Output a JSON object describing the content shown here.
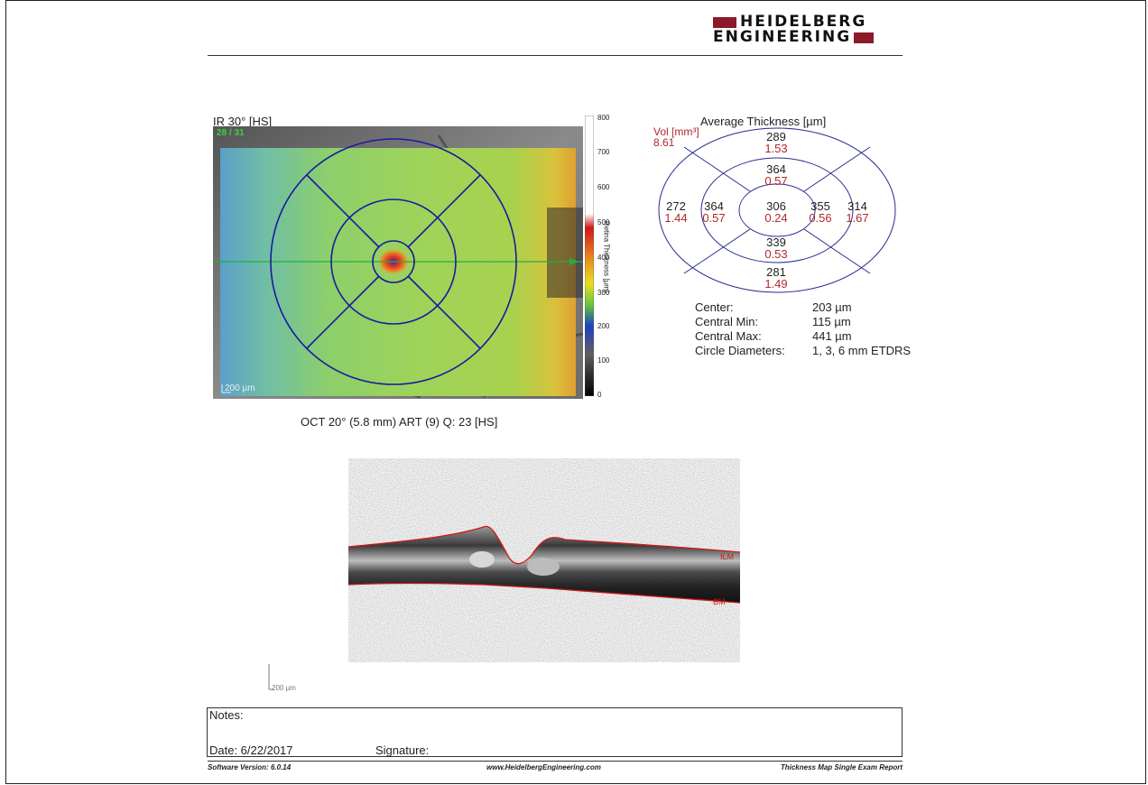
{
  "logo": {
    "line1": "HEIDELBERG",
    "line2": "ENGINEERING"
  },
  "fundus": {
    "title": "IR 30° [HS]",
    "frames": "28 / 31",
    "scale": "200 µm"
  },
  "colorbar": {
    "label": "Retina Thickness [µm]",
    "ticks": [
      "800",
      "700",
      "600",
      "500",
      "400",
      "300",
      "200",
      "100",
      "0"
    ]
  },
  "etdrs": {
    "title": "Average Thickness [µm]",
    "vol_label": "Vol [mm³]",
    "vol_value": "8.61",
    "sectors": {
      "outer_superior": {
        "thickness": "289",
        "volume": "1.53"
      },
      "inner_superior": {
        "thickness": "364",
        "volume": "0.57"
      },
      "outer_temporal": {
        "thickness": "272",
        "volume": "1.44"
      },
      "inner_temporal": {
        "thickness": "364",
        "volume": "0.57"
      },
      "center": {
        "thickness": "306",
        "volume": "0.24"
      },
      "inner_nasal": {
        "thickness": "355",
        "volume": "0.56"
      },
      "outer_nasal": {
        "thickness": "314",
        "volume": "1.67"
      },
      "inner_inferior": {
        "thickness": "339",
        "volume": "0.53"
      },
      "outer_inferior": {
        "thickness": "281",
        "volume": "1.49"
      }
    }
  },
  "stats": [
    {
      "label": "Center:",
      "value": "203 µm"
    },
    {
      "label": "Central Min:",
      "value": "115 µm"
    },
    {
      "label": "Central Max:",
      "value": "441 µm"
    },
    {
      "label": "Circle Diameters:",
      "value": "1, 3, 6 mm ETDRS"
    }
  ],
  "oct": {
    "caption": "OCT 20° (5.8 mm) ART (9) Q: 23 [HS]",
    "ilm_label": "ILM",
    "bm_label": "BM",
    "scale": "200 µm"
  },
  "notes": {
    "label": "Notes:",
    "date": "Date: 6/22/2017",
    "signature": "Signature:"
  },
  "footer": {
    "version": "Software Version: 6.0.14",
    "url": "www.HeidelbergEngineering.com",
    "report": "Thickness Map Single Exam Report"
  },
  "colors": {
    "brand": "#8b1a2b",
    "volume_text": "#b0282c",
    "etdrs_lines": "#1a1aa0",
    "segmentation": "#d01818"
  }
}
